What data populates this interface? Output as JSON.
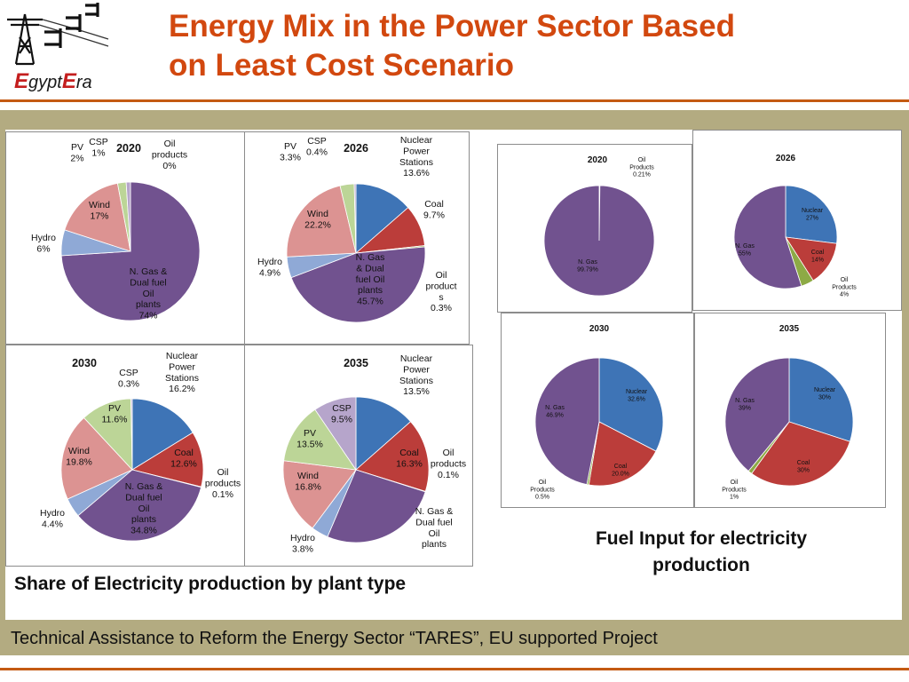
{
  "header": {
    "title_line1": "Energy Mix in the Power Sector Based",
    "title_line2": "on Least Cost Scenario",
    "logo_name_e": "E",
    "logo_name_gypt": "gypt",
    "logo_name_e2": "E",
    "logo_name_ra": "ra"
  },
  "footer": {
    "text": "Technical Assistance to  Reform the Energy Sector “TARES”, EU supported Project"
  },
  "left_section": {
    "label_part1": "Share of E",
    "label_part2": "lectricity production by plant type"
  },
  "right_section": {
    "label_line1": "Fuel Input for electricity",
    "label_line2": "production"
  },
  "colors": {
    "title": "#d2480f",
    "rule": "#c45a12",
    "olive_band": "#b3ab81",
    "logo_red": "#c41e1e",
    "nuclear": "#3e74b6",
    "coal": "#bb3d3a",
    "oil": "#8daa45",
    "ngas": "#71528f",
    "hydro": "#8fa9d6",
    "wind": "#dc9392",
    "pv": "#bcd597",
    "csp": "#b6a5cb"
  },
  "chart_data": [
    {
      "type": "pie",
      "title": "2020",
      "slices": [
        {
          "name": "Oil products",
          "value": 0,
          "color": "oil",
          "label": [
            "Oil",
            "products",
            "0%"
          ]
        },
        {
          "name": "N. Gas & Dual fuel Oil plants",
          "value": 74,
          "color": "ngas",
          "label": [
            "N. Gas &",
            "Dual fuel",
            "Oil",
            "plants",
            "74%"
          ]
        },
        {
          "name": "Hydro",
          "value": 6,
          "color": "hydro",
          "label": [
            "Hydro",
            "6%"
          ]
        },
        {
          "name": "Wind",
          "value": 17,
          "color": "wind",
          "label": [
            "Wind",
            "17%"
          ]
        },
        {
          "name": "PV",
          "value": 2,
          "color": "pv",
          "label": [
            "PV",
            "2%"
          ]
        },
        {
          "name": "CSP",
          "value": 1,
          "color": "csp",
          "label": [
            "CSP",
            "1%"
          ]
        }
      ]
    },
    {
      "type": "pie",
      "title": "2026",
      "slices": [
        {
          "name": "Nuclear Power Stations",
          "value": 13.6,
          "color": "nuclear",
          "label": [
            "Nuclear",
            "Power",
            "Stations",
            "13.6%"
          ]
        },
        {
          "name": "Coal",
          "value": 9.7,
          "color": "coal",
          "label": [
            "Coal",
            "9.7%"
          ]
        },
        {
          "name": "Oil products",
          "value": 0.3,
          "color": "oil",
          "label": [
            "Oil",
            "product",
            "s",
            "0.3%"
          ]
        },
        {
          "name": "N. Gas & Dual fuel Oil plants",
          "value": 45.7,
          "color": "ngas",
          "label": [
            "N. Gas",
            "& Dual",
            "fuel Oil",
            "plants",
            "45.7%"
          ]
        },
        {
          "name": "Hydro",
          "value": 4.9,
          "color": "hydro",
          "label": [
            "Hydro",
            "4.9%"
          ]
        },
        {
          "name": "Wind",
          "value": 22.2,
          "color": "wind",
          "label": [
            "Wind",
            "22.2%"
          ]
        },
        {
          "name": "PV",
          "value": 3.3,
          "color": "pv",
          "label": [
            "PV",
            "3.3%"
          ]
        },
        {
          "name": "CSP",
          "value": 0.4,
          "color": "csp",
          "label": [
            "CSP",
            "0.4%"
          ]
        }
      ]
    },
    {
      "type": "pie",
      "title": "2030",
      "slices": [
        {
          "name": "Nuclear Power Stations",
          "value": 16.2,
          "color": "nuclear",
          "label": [
            "Nuclear",
            "Power",
            "Stations",
            "16.2%"
          ]
        },
        {
          "name": "Coal",
          "value": 12.6,
          "color": "coal",
          "label": [
            "Coal",
            "12.6%"
          ]
        },
        {
          "name": "Oil products",
          "value": 0.1,
          "color": "oil",
          "label": [
            "Oil",
            "products",
            "0.1%"
          ]
        },
        {
          "name": "N. Gas & Dual fuel Oil plants",
          "value": 34.8,
          "color": "ngas",
          "label": [
            "N. Gas &",
            "Dual fuel",
            "Oil",
            "plants",
            "34.8%"
          ]
        },
        {
          "name": "Hydro",
          "value": 4.4,
          "color": "hydro",
          "label": [
            "Hydro",
            "4.4%"
          ]
        },
        {
          "name": "Wind",
          "value": 19.8,
          "color": "wind",
          "label": [
            "Wind",
            "19.8%"
          ]
        },
        {
          "name": "PV",
          "value": 11.6,
          "color": "pv",
          "label": [
            "PV",
            "11.6%"
          ]
        },
        {
          "name": "CSP",
          "value": 0.3,
          "color": "csp",
          "label": [
            "CSP",
            "0.3%"
          ]
        }
      ]
    },
    {
      "type": "pie",
      "title": "2035",
      "slices": [
        {
          "name": "Nuclear Power Stations",
          "value": 13.5,
          "color": "nuclear",
          "label": [
            "Nuclear",
            "Power",
            "Stations",
            "13.5%"
          ]
        },
        {
          "name": "Coal",
          "value": 16.3,
          "color": "coal",
          "label": [
            "Coal",
            "16.3%"
          ]
        },
        {
          "name": "Oil products",
          "value": 0.1,
          "color": "oil",
          "label": [
            "Oil",
            "products",
            "0.1%"
          ]
        },
        {
          "name": "N. Gas & Dual fuel Oil plants",
          "value": 26.5,
          "color": "ngas",
          "label": [
            "N. Gas &",
            "Dual fuel",
            "Oil",
            "plants"
          ]
        },
        {
          "name": "Hydro",
          "value": 3.8,
          "color": "hydro",
          "label": [
            "Hydro",
            "3.8%"
          ]
        },
        {
          "name": "Wind",
          "value": 16.8,
          "color": "wind",
          "label": [
            "Wind",
            "16.8%"
          ]
        },
        {
          "name": "PV",
          "value": 13.5,
          "color": "pv",
          "label": [
            "PV",
            "13.5%"
          ]
        },
        {
          "name": "CSP",
          "value": 9.5,
          "color": "csp",
          "label": [
            "CSP",
            "9.5%"
          ]
        }
      ]
    },
    {
      "type": "pie",
      "title": "2020",
      "slices": [
        {
          "name": "Oil Products",
          "value": 0.21,
          "color": "oil",
          "label": [
            "Oil",
            "Products",
            "0.21%"
          ]
        },
        {
          "name": "N. Gas",
          "value": 99.79,
          "color": "ngas",
          "label": [
            "N. Gas",
            "99.79%"
          ]
        }
      ]
    },
    {
      "type": "pie",
      "title": "2026",
      "slices": [
        {
          "name": "Nuclear",
          "value": 27,
          "color": "nuclear",
          "label": [
            "Nuclear",
            "27%"
          ]
        },
        {
          "name": "Coal",
          "value": 14,
          "color": "coal",
          "label": [
            "Coal",
            "14%"
          ]
        },
        {
          "name": "Oil Products",
          "value": 4,
          "color": "oil",
          "label": [
            "Oil",
            "Products",
            "4%"
          ]
        },
        {
          "name": "N. Gas",
          "value": 55,
          "color": "ngas",
          "label": [
            "N. Gas",
            "55%"
          ]
        }
      ]
    },
    {
      "type": "pie",
      "title": "2030",
      "slices": [
        {
          "name": "Nuclear",
          "value": 32.6,
          "color": "nuclear",
          "label": [
            "Nuclear",
            "32.6%"
          ]
        },
        {
          "name": "Coal",
          "value": 20.0,
          "color": "coal",
          "label": [
            "Coal",
            "20.0%"
          ]
        },
        {
          "name": "Oil Products",
          "value": 0.5,
          "color": "oil",
          "label": [
            "Oil",
            "Products",
            "0.5%"
          ]
        },
        {
          "name": "N. Gas",
          "value": 46.9,
          "color": "ngas",
          "label": [
            "N. Gas",
            "46.9%"
          ]
        }
      ]
    },
    {
      "type": "pie",
      "title": "2035",
      "slices": [
        {
          "name": "Nuclear",
          "value": 30,
          "color": "nuclear",
          "label": [
            "Nuclear",
            "30%"
          ]
        },
        {
          "name": "Coal",
          "value": 30,
          "color": "coal",
          "label": [
            "Coal",
            "30%"
          ]
        },
        {
          "name": "Oil Products",
          "value": 1,
          "color": "oil",
          "label": [
            "Oil",
            "Products",
            "1%"
          ]
        },
        {
          "name": "N. Gas",
          "value": 39,
          "color": "ngas",
          "label": [
            "N. Gas",
            "39%"
          ]
        }
      ]
    }
  ]
}
